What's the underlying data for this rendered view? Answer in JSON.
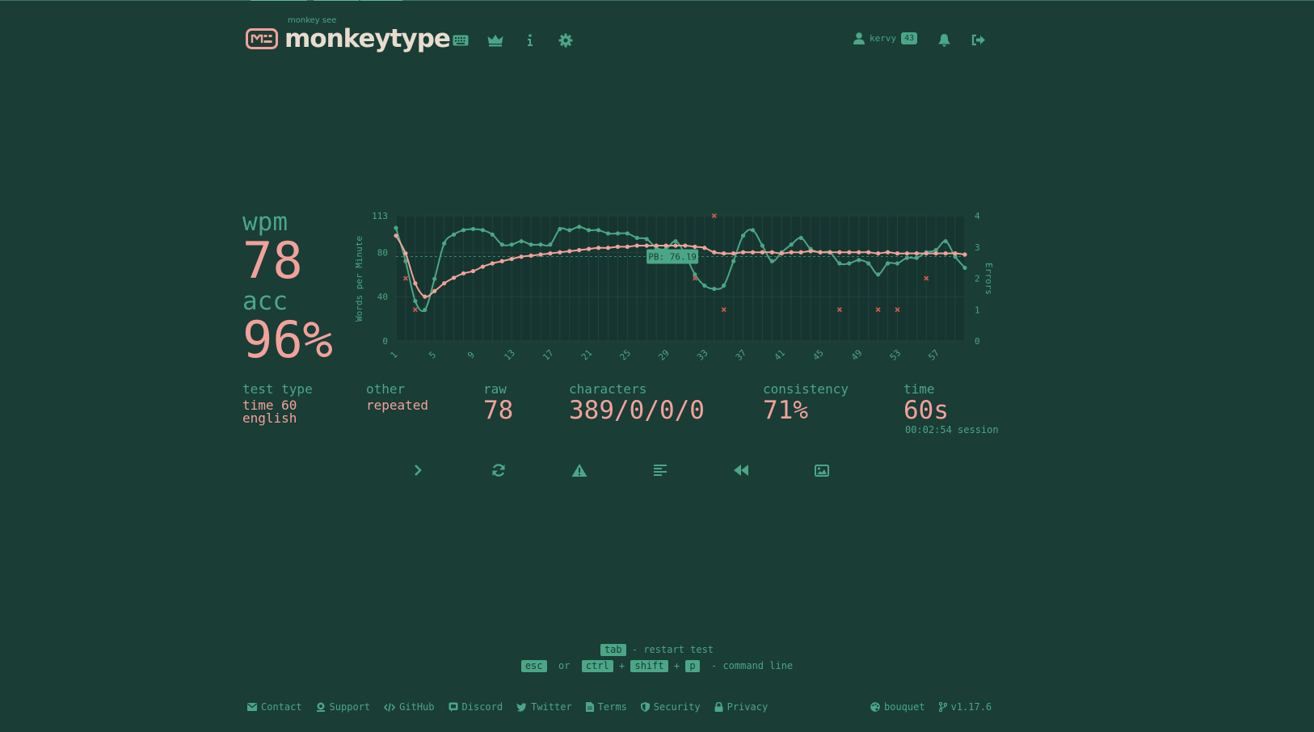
{
  "colors": {
    "background": "#1a3d36",
    "main": "#4ba687",
    "text": "#f1a29b",
    "logo_text": "#e8dccf",
    "error": "#d95b4f",
    "chart_area": "#173530"
  },
  "header": {
    "logo_sub": "monkey see",
    "logo": "monkeytype",
    "nav": [
      "keyboard-icon",
      "crown-icon",
      "info-icon",
      "gear-icon"
    ],
    "username": "kervy",
    "level": "43",
    "icons": [
      "user-icon",
      "bell-icon",
      "sign-out-icon"
    ]
  },
  "result": {
    "wpm_label": "wpm",
    "wpm": "78",
    "acc_label": "acc",
    "acc": "96%",
    "test_type_label": "test type",
    "test_type_line1": "time 60",
    "test_type_line2": "english",
    "other_label": "other",
    "other_value": "repeated",
    "raw_label": "raw",
    "raw_value": "78",
    "characters_label": "characters",
    "characters_value": "389/0/0/0",
    "consistency_label": "consistency",
    "consistency_value": "71%",
    "time_label": "time",
    "time_value": "60s",
    "session": "00:02:54 session"
  },
  "chart_data": {
    "type": "line",
    "ylabel": "Words per Minute",
    "y2label": "Errors",
    "ylim": [
      0,
      113
    ],
    "y_ticks": [
      "0",
      "40",
      "80",
      "113"
    ],
    "y2lim": [
      0,
      4
    ],
    "y2_ticks": [
      "0",
      "1",
      "2",
      "3",
      "4"
    ],
    "x_ticks": [
      "1",
      "5",
      "9",
      "13",
      "17",
      "21",
      "25",
      "29",
      "33",
      "37",
      "41",
      "45",
      "49",
      "53",
      "57"
    ],
    "pb_label": "PB: 76.19",
    "pb_value": 76.19,
    "grid": true,
    "x": [
      1,
      2,
      3,
      4,
      5,
      6,
      7,
      8,
      9,
      10,
      11,
      12,
      13,
      14,
      15,
      16,
      17,
      18,
      19,
      20,
      21,
      22,
      23,
      24,
      25,
      26,
      27,
      28,
      29,
      30,
      31,
      32,
      33,
      34,
      35,
      36,
      37,
      38,
      39,
      40,
      41,
      42,
      43,
      44,
      45,
      46,
      47,
      48,
      49,
      50,
      51,
      52,
      53,
      54,
      55,
      56,
      57,
      58,
      59,
      60
    ],
    "series": [
      {
        "kind": "raw",
        "color": "#4ba687",
        "values": [
          102,
          72,
          36,
          28,
          56,
          88,
          96,
          100,
          101,
          100,
          96,
          87,
          87,
          90,
          87,
          87,
          87,
          101,
          100,
          103,
          100,
          100,
          97,
          97,
          97,
          93,
          92,
          84,
          83,
          90,
          78,
          60,
          50,
          47,
          50,
          72,
          95,
          100,
          86,
          72,
          80,
          87,
          93,
          83,
          80,
          80,
          70,
          70,
          73,
          70,
          60,
          70,
          70,
          75,
          75,
          80,
          82,
          90,
          76,
          66
        ]
      },
      {
        "kind": "wpm",
        "color": "#f1a29b",
        "values": [
          95,
          79,
          52,
          40,
          45,
          52,
          57,
          61,
          63,
          67,
          70,
          72,
          74,
          76,
          77,
          78,
          79,
          80,
          81,
          82,
          83,
          84,
          84,
          85,
          85,
          86,
          86,
          86,
          86,
          86,
          86,
          85,
          84,
          80,
          79,
          79,
          80,
          80,
          80,
          80,
          79,
          80,
          80,
          81,
          80,
          80,
          80,
          80,
          80,
          80,
          79,
          80,
          79,
          79,
          79,
          79,
          79,
          79,
          79,
          78
        ]
      }
    ],
    "errors": [
      {
        "x": 2,
        "count": 2
      },
      {
        "x": 3,
        "count": 1
      },
      {
        "x": 32,
        "count": 2
      },
      {
        "x": 34,
        "count": 4
      },
      {
        "x": 35,
        "count": 1
      },
      {
        "x": 47,
        "count": 1
      },
      {
        "x": 51,
        "count": 1
      },
      {
        "x": 53,
        "count": 1
      },
      {
        "x": 56,
        "count": 2
      }
    ]
  },
  "actions": [
    "chevron-right-icon",
    "redo-icon",
    "warning-icon",
    "align-left-icon",
    "backward-icon",
    "image-icon"
  ],
  "hints": {
    "tab_key": "tab",
    "restart_text": "- restart test",
    "esc_key": "esc",
    "or_text": "or",
    "ctrl_key": "ctrl",
    "plus": "+",
    "shift_key": "shift",
    "p_key": "p",
    "command_text": "- command line"
  },
  "footer": {
    "links": [
      {
        "label": "Contact",
        "icon": "envelope-icon"
      },
      {
        "label": "Support",
        "icon": "donate-icon"
      },
      {
        "label": "GitHub",
        "icon": "code-icon"
      },
      {
        "label": "Discord",
        "icon": "discord-icon"
      },
      {
        "label": "Twitter",
        "icon": "twitter-icon"
      },
      {
        "label": "Terms",
        "icon": "file-icon"
      },
      {
        "label": "Security",
        "icon": "shield-icon"
      },
      {
        "label": "Privacy",
        "icon": "lock-icon"
      }
    ],
    "theme": "bouquet",
    "version": "v1.17.6"
  }
}
